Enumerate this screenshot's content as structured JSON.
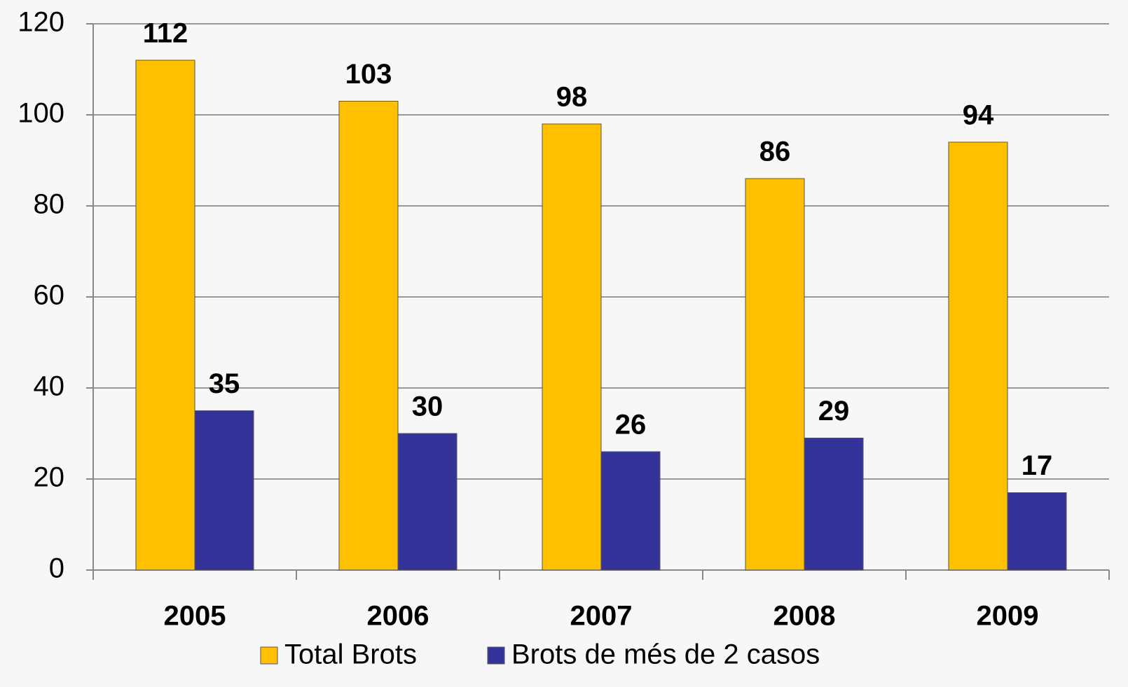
{
  "chart_data": {
    "type": "bar",
    "categories": [
      "2005",
      "2006",
      "2007",
      "2008",
      "2009"
    ],
    "series": [
      {
        "name": "Total Brots",
        "color": "#ffc000",
        "values": [
          112,
          103,
          98,
          86,
          94
        ]
      },
      {
        "name": "Brots de més de 2 casos",
        "color": "#333399",
        "values": [
          35,
          30,
          26,
          29,
          17
        ]
      }
    ],
    "ylim": [
      0,
      120
    ],
    "yticks": [
      0,
      20,
      40,
      60,
      80,
      100,
      120
    ],
    "grid": true,
    "legend": "bottom"
  }
}
